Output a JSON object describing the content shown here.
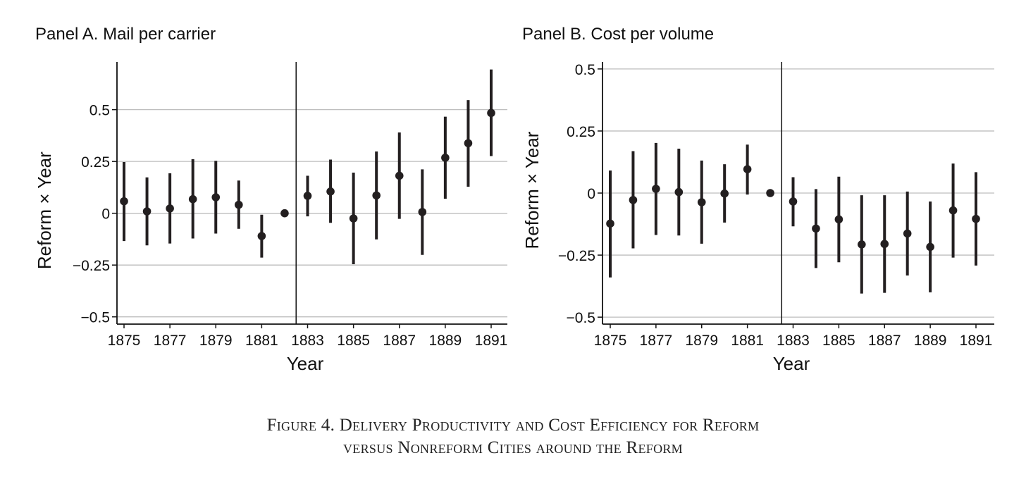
{
  "chart_data": [
    {
      "type": "scatter",
      "subtype": "point estimates with confidence intervals",
      "title": "Panel A. Mail per carrier",
      "xlabel": "Year",
      "ylabel": "Reform × Year",
      "xlim": [
        1874.7,
        1891.7
      ],
      "ylim": [
        -0.535,
        0.73
      ],
      "yticks": [
        0.5,
        0.25,
        0,
        -0.25,
        -0.5
      ],
      "ytick_labels": [
        "0.5",
        "0.25",
        "0",
        "−0.25",
        "−0.5"
      ],
      "xticks": [
        1875,
        1877,
        1879,
        1881,
        1883,
        1885,
        1887,
        1889,
        1891
      ],
      "xtick_labels": [
        "1875",
        "1877",
        "1879",
        "1881",
        "1883",
        "1885",
        "1887",
        "1889",
        "1891"
      ],
      "grid": "horizontal",
      "reference_line_x": 1882.5,
      "x": [
        1875,
        1876,
        1877,
        1878,
        1879,
        1880,
        1881,
        1882,
        1883,
        1884,
        1885,
        1886,
        1887,
        1888,
        1889,
        1890,
        1891
      ],
      "estimate": [
        0.058,
        0.009,
        0.023,
        0.068,
        0.077,
        0.041,
        -0.11,
        0,
        0.084,
        0.105,
        -0.025,
        0.086,
        0.181,
        0.006,
        0.268,
        0.338,
        0.484
      ],
      "ci_upper": [
        0.247,
        0.173,
        0.193,
        0.261,
        0.253,
        0.158,
        -0.007,
        null,
        0.181,
        0.259,
        0.196,
        0.298,
        0.39,
        0.212,
        0.466,
        0.546,
        0.694
      ],
      "ci_lower": [
        -0.134,
        -0.155,
        -0.146,
        -0.122,
        -0.098,
        -0.075,
        -0.214,
        null,
        -0.015,
        -0.046,
        -0.246,
        -0.126,
        -0.027,
        -0.201,
        0.07,
        0.128,
        0.276
      ]
    },
    {
      "type": "scatter",
      "subtype": "point estimates with confidence intervals",
      "title": "Panel B. Cost per volume",
      "xlabel": "Year",
      "ylabel": "Reform × Year",
      "xlim": [
        1874.7,
        1891.7
      ],
      "ylim": [
        -0.528,
        0.528
      ],
      "yticks": [
        0.5,
        0.25,
        0,
        -0.25,
        -0.5
      ],
      "ytick_labels": [
        "0.5",
        "0.25",
        "0",
        "−0.25",
        "−0.5"
      ],
      "xticks": [
        1875,
        1877,
        1879,
        1881,
        1883,
        1885,
        1887,
        1889,
        1891
      ],
      "xtick_labels": [
        "1875",
        "1877",
        "1879",
        "1881",
        "1883",
        "1885",
        "1887",
        "1889",
        "1891"
      ],
      "grid": "horizontal",
      "reference_line_x": 1882.5,
      "x": [
        1875,
        1876,
        1877,
        1878,
        1879,
        1880,
        1881,
        1882,
        1883,
        1884,
        1885,
        1886,
        1887,
        1888,
        1889,
        1890,
        1891
      ],
      "estimate": [
        -0.123,
        -0.028,
        0.017,
        0.004,
        -0.037,
        -0.002,
        0.096,
        0,
        -0.034,
        -0.143,
        -0.106,
        -0.207,
        -0.205,
        -0.163,
        -0.217,
        -0.07,
        -0.104
      ],
      "ci_upper": [
        0.091,
        0.169,
        0.202,
        0.179,
        0.131,
        0.116,
        0.195,
        null,
        0.064,
        0.016,
        0.066,
        -0.009,
        -0.009,
        0.006,
        -0.034,
        0.119,
        0.084
      ],
      "ci_lower": [
        -0.34,
        -0.223,
        -0.169,
        -0.171,
        -0.204,
        -0.119,
        -0.006,
        null,
        -0.134,
        -0.302,
        -0.279,
        -0.405,
        -0.402,
        -0.332,
        -0.4,
        -0.26,
        -0.292
      ]
    }
  ],
  "caption": {
    "line1": "Figure 4. Delivery Productivity and Cost Efficiency for Reform",
    "line2": "versus Nonreform Cities around the Reform"
  },
  "colors": {
    "marker": "#231f20",
    "grid": "#bdbdbd",
    "axis": "#111111"
  }
}
